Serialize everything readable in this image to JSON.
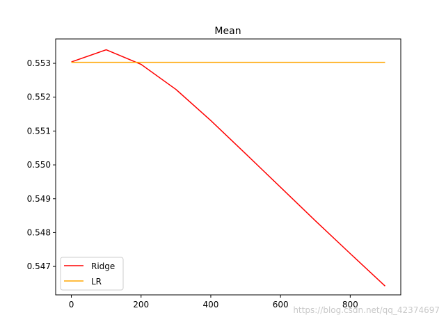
{
  "chart_data": {
    "type": "line",
    "title": "Mean",
    "xlabel": "",
    "ylabel": "",
    "xlim": [
      -45,
      945
    ],
    "ylim": [
      0.54616,
      0.55372
    ],
    "x_ticks": [
      0,
      200,
      400,
      600,
      800
    ],
    "y_ticks": [
      0.547,
      0.548,
      0.549,
      0.55,
      0.551,
      0.552,
      0.553
    ],
    "x_tick_labels": [
      "0",
      "200",
      "400",
      "600",
      "800"
    ],
    "y_tick_labels": [
      "0.547",
      "0.548",
      "0.549",
      "0.550",
      "0.551",
      "0.552",
      "0.553"
    ],
    "grid": false,
    "legend_position": "lower-left",
    "series": [
      {
        "name": "Ridge",
        "color": "#ff0000",
        "x": [
          0,
          100,
          200,
          300,
          400,
          500,
          600,
          700,
          800,
          900
        ],
        "y": [
          0.55304,
          0.5534,
          0.55297,
          0.55223,
          0.55131,
          0.55033,
          0.54934,
          0.54835,
          0.54738,
          0.54642
        ]
      },
      {
        "name": "LR",
        "color": "#ffa500",
        "x": [
          0,
          100,
          200,
          300,
          400,
          500,
          600,
          700,
          800,
          900
        ],
        "y": [
          0.55303,
          0.55303,
          0.55303,
          0.55303,
          0.55303,
          0.55303,
          0.55303,
          0.55303,
          0.55303,
          0.55303
        ]
      }
    ]
  },
  "watermark": "https://blog.csdn.net/qq_42374697"
}
